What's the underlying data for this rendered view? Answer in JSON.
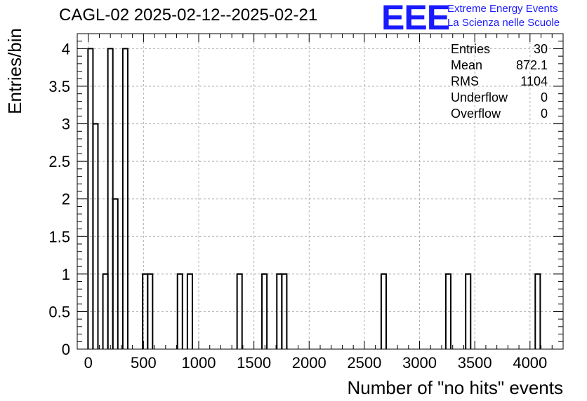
{
  "title": "CAGL-02 2025-02-12--2025-02-21",
  "logo": {
    "mark": "EEE",
    "line1": "Extreme Energy Events",
    "line2": "La Scienza nelle Scuole",
    "color": "#1a1aff"
  },
  "stats": [
    {
      "label": "Entries",
      "value": "30"
    },
    {
      "label": "Mean",
      "value": "872.1"
    },
    {
      "label": "RMS",
      "value": "1104"
    },
    {
      "label": "Underflow",
      "value": "0"
    },
    {
      "label": "Overflow",
      "value": "0"
    }
  ],
  "chart_data": {
    "type": "histogram",
    "xlabel": "Number of \"no hits\" events",
    "ylabel": "Entries/bin",
    "xlim": [
      -100,
      4300
    ],
    "ylim": [
      0,
      4.2
    ],
    "bin_width": 45,
    "x_ticks": [
      0,
      500,
      1000,
      1500,
      2000,
      2500,
      3000,
      3500,
      4000
    ],
    "x_tick_labels": [
      "0",
      "500",
      "1000",
      "1500",
      "2000",
      "2500",
      "3000",
      "3500",
      "4000"
    ],
    "y_ticks": [
      0,
      0.5,
      1,
      1.5,
      2,
      2.5,
      3,
      3.5,
      4
    ],
    "y_tick_labels": [
      "0",
      "0.5",
      "1",
      "1.5",
      "2",
      "2.5",
      "3",
      "3.5",
      "4"
    ],
    "grid": true,
    "bins": [
      {
        "x": 20,
        "count": 4
      },
      {
        "x": 65,
        "count": 3
      },
      {
        "x": 155,
        "count": 1
      },
      {
        "x": 200,
        "count": 4
      },
      {
        "x": 245,
        "count": 2
      },
      {
        "x": 335,
        "count": 4
      },
      {
        "x": 515,
        "count": 1
      },
      {
        "x": 560,
        "count": 1
      },
      {
        "x": 830,
        "count": 1
      },
      {
        "x": 920,
        "count": 1
      },
      {
        "x": 1370,
        "count": 1
      },
      {
        "x": 1595,
        "count": 1
      },
      {
        "x": 1730,
        "count": 1
      },
      {
        "x": 1775,
        "count": 1
      },
      {
        "x": 2675,
        "count": 1
      },
      {
        "x": 3260,
        "count": 1
      },
      {
        "x": 3440,
        "count": 1
      },
      {
        "x": 4070,
        "count": 1
      }
    ],
    "line_color": "#000000",
    "grid_color": "#b0b0b0"
  }
}
